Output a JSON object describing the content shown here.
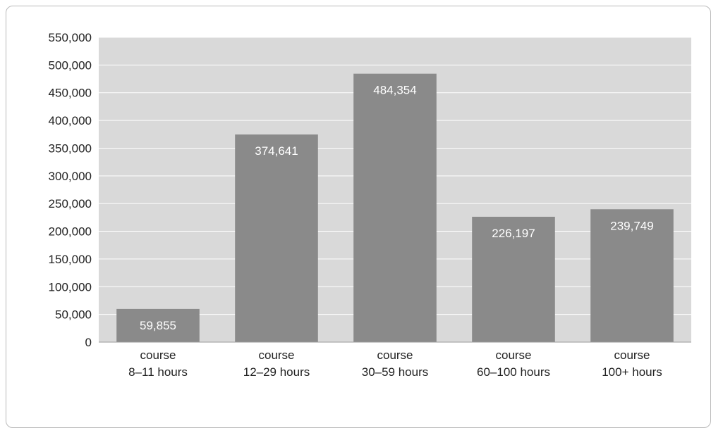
{
  "chart_data": {
    "type": "bar",
    "categories": [
      [
        "course",
        "8–11 hours"
      ],
      [
        "course",
        "12–29 hours"
      ],
      [
        "course",
        "30–59 hours"
      ],
      [
        "course",
        "60–100 hours"
      ],
      [
        "course",
        "100+ hours"
      ]
    ],
    "values": [
      59855,
      374641,
      484354,
      226197,
      239749
    ],
    "value_labels": [
      "59,855",
      "374,641",
      "484,354",
      "226,197",
      "239,749"
    ],
    "yticks": [
      "0",
      "50,000",
      "100,000",
      "150,000",
      "200,000",
      "250,000",
      "300,000",
      "350,000",
      "400,000",
      "450,000",
      "500,000",
      "550,000"
    ],
    "ylim": [
      0,
      550000
    ],
    "grid": true,
    "legend": "none",
    "colors": {
      "plot_bg": "#d9d9d9",
      "bar": "#8a8a8a",
      "grid": "#ffffff",
      "label": "#ffffff"
    }
  }
}
